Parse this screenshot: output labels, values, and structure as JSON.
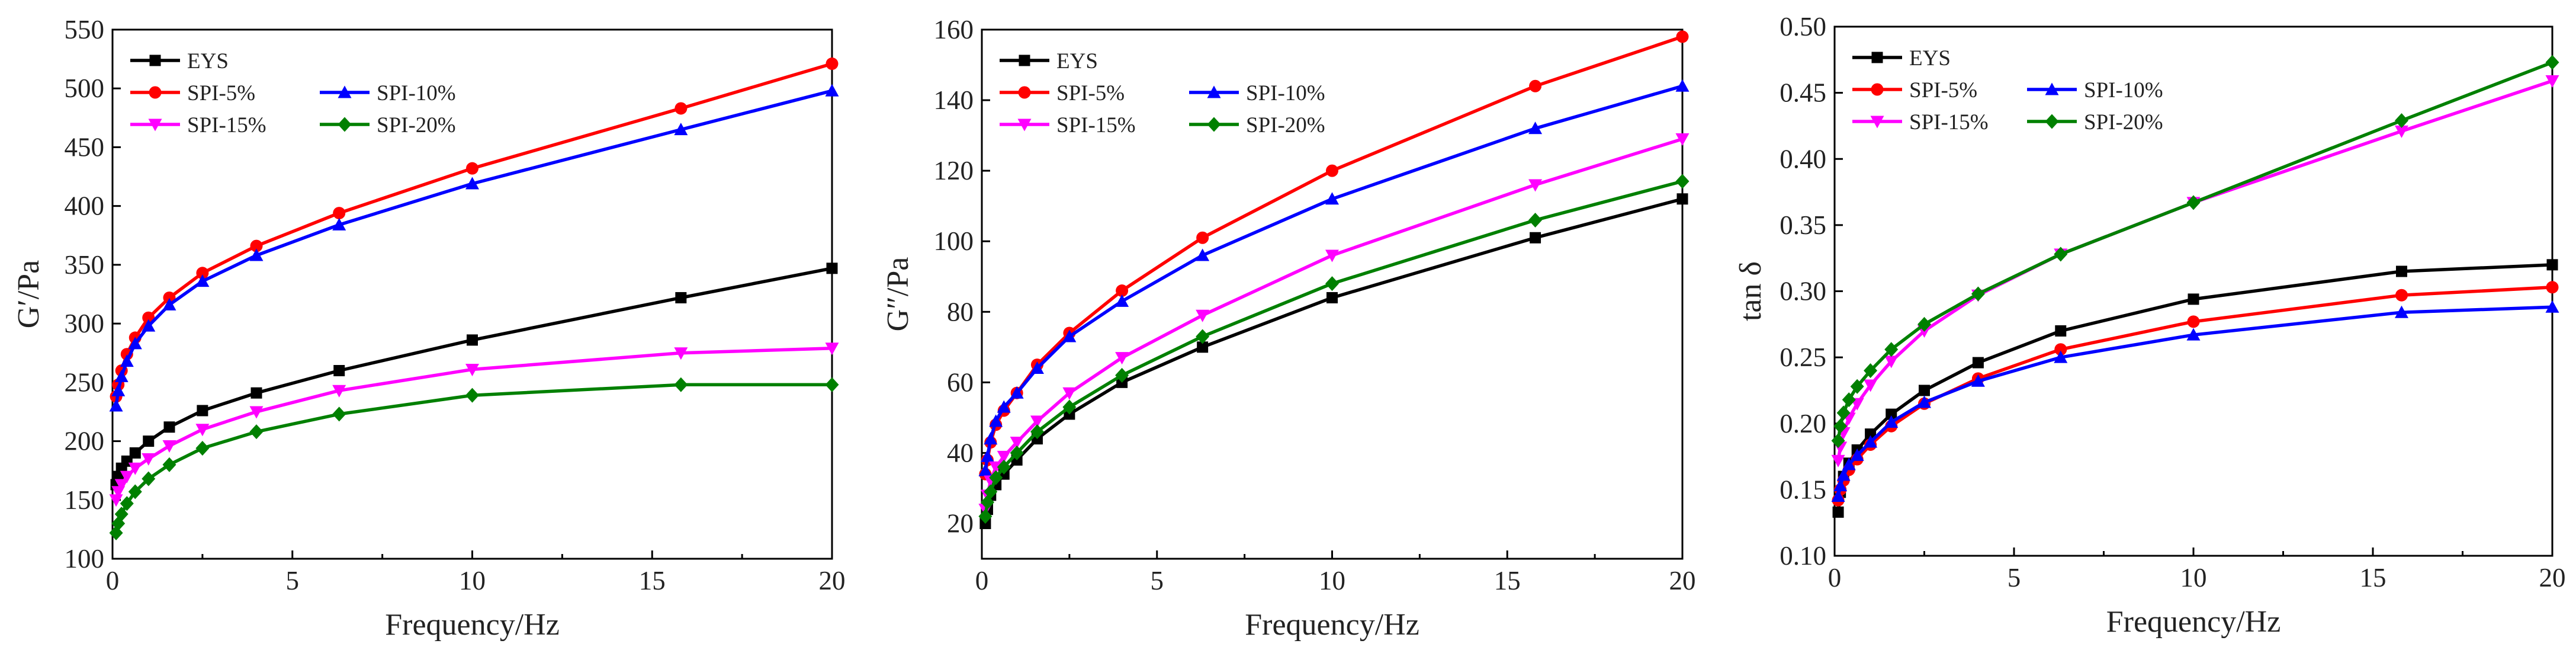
{
  "chart_data": [
    {
      "type": "line",
      "panel": "G-prime",
      "title": "",
      "xlabel": "Frequency/Hz",
      "ylabel": "G′/Pa",
      "xlim": [
        0,
        20
      ],
      "ylim": [
        100,
        550
      ],
      "xticks": [
        0,
        5,
        10,
        15,
        20
      ],
      "yticks": [
        100,
        150,
        200,
        250,
        300,
        350,
        400,
        450,
        500,
        550
      ],
      "grid": false,
      "legend_position": "top-left",
      "x": [
        0.1,
        0.16,
        0.25,
        0.4,
        0.63,
        1.0,
        1.58,
        2.5,
        4.0,
        6.3,
        10.0,
        15.8,
        20.0
      ],
      "series": [
        {
          "name": "EYS",
          "color": "#000000",
          "marker": "square",
          "values": [
            163,
            170,
            177,
            183,
            190,
            200,
            212,
            226,
            241,
            260,
            286,
            322,
            347
          ]
        },
        {
          "name": "SPI-5%",
          "color": "#ff0000",
          "marker": "circle",
          "values": [
            238,
            248,
            260,
            274,
            288,
            305,
            322,
            343,
            366,
            394,
            432,
            483,
            521
          ]
        },
        {
          "name": "SPI-10%",
          "color": "#0000ff",
          "marker": "triangle-up",
          "values": [
            230,
            243,
            255,
            268,
            283,
            298,
            316,
            336,
            358,
            384,
            419,
            465,
            498
          ]
        },
        {
          "name": "SPI-15%",
          "color": "#ff00ff",
          "marker": "triangle-down",
          "values": [
            150,
            157,
            163,
            170,
            177,
            185,
            196,
            210,
            225,
            243,
            261,
            275,
            279
          ]
        },
        {
          "name": "SPI-20%",
          "color": "#008000",
          "marker": "diamond",
          "values": [
            122,
            130,
            138,
            147,
            157,
            168,
            180,
            194,
            208,
            223,
            239,
            248,
            248
          ]
        }
      ]
    },
    {
      "type": "line",
      "panel": "G-double-prime",
      "title": "",
      "xlabel": "Frequency/Hz",
      "ylabel": "G″/Pa",
      "xlim": [
        0,
        20
      ],
      "ylim": [
        10,
        160
      ],
      "xticks": [
        0,
        5,
        10,
        15,
        20
      ],
      "yticks": [
        20,
        40,
        60,
        80,
        100,
        120,
        140,
        160
      ],
      "grid": false,
      "legend_position": "top-left",
      "x": [
        0.1,
        0.16,
        0.25,
        0.4,
        0.63,
        1.0,
        1.58,
        2.5,
        4.0,
        6.3,
        10.0,
        15.8,
        20.0
      ],
      "series": [
        {
          "name": "EYS",
          "color": "#000000",
          "marker": "square",
          "values": [
            20,
            24,
            28,
            31,
            34,
            38,
            44,
            51,
            60,
            70,
            84,
            101,
            112
          ]
        },
        {
          "name": "SPI-5%",
          "color": "#ff0000",
          "marker": "circle",
          "values": [
            34,
            38,
            43,
            48,
            52,
            57,
            65,
            74,
            86,
            101,
            120,
            144,
            158
          ]
        },
        {
          "name": "SPI-10%",
          "color": "#0000ff",
          "marker": "triangle-up",
          "values": [
            35,
            39,
            44,
            49,
            53,
            57,
            64,
            73,
            83,
            96,
            112,
            132,
            144
          ]
        },
        {
          "name": "SPI-15%",
          "color": "#ff00ff",
          "marker": "triangle-down",
          "values": [
            24,
            28,
            32,
            36,
            39,
            43,
            49,
            57,
            67,
            79,
            96,
            116,
            129
          ]
        },
        {
          "name": "SPI-20%",
          "color": "#008000",
          "marker": "diamond",
          "values": [
            22,
            26,
            29,
            33,
            36,
            40,
            46,
            53,
            62,
            73,
            88,
            106,
            117
          ]
        }
      ]
    },
    {
      "type": "line",
      "panel": "tan-delta",
      "title": "",
      "xlabel": "Frequency/Hz",
      "ylabel": "tan δ",
      "xlim": [
        0,
        20
      ],
      "ylim": [
        0.1,
        0.5
      ],
      "xticks": [
        0,
        5,
        10,
        15,
        20
      ],
      "yticks": [
        0.1,
        0.15,
        0.2,
        0.25,
        0.3,
        0.35,
        0.4,
        0.45,
        0.5
      ],
      "ytick_labels": [
        "0.10",
        "0.15",
        "0.20",
        "0.25",
        "0.30",
        "0.35",
        "0.40",
        "0.45",
        "0.50"
      ],
      "grid": false,
      "legend_position": "top-left",
      "x": [
        0.1,
        0.16,
        0.25,
        0.4,
        0.63,
        1.0,
        1.58,
        2.5,
        4.0,
        6.3,
        10.0,
        15.8,
        20.0
      ],
      "series": [
        {
          "name": "EYS",
          "color": "#000000",
          "marker": "square",
          "values": [
            0.133,
            0.148,
            0.16,
            0.17,
            0.18,
            0.192,
            0.207,
            0.225,
            0.246,
            0.27,
            0.294,
            0.315,
            0.32
          ]
        },
        {
          "name": "SPI-5%",
          "color": "#ff0000",
          "marker": "circle",
          "values": [
            0.142,
            0.15,
            0.157,
            0.165,
            0.173,
            0.184,
            0.198,
            0.215,
            0.234,
            0.256,
            0.277,
            0.297,
            0.303
          ]
        },
        {
          "name": "SPI-10%",
          "color": "#0000ff",
          "marker": "triangle-up",
          "values": [
            0.145,
            0.153,
            0.161,
            0.169,
            0.176,
            0.186,
            0.201,
            0.216,
            0.232,
            0.25,
            0.267,
            0.284,
            0.288
          ]
        },
        {
          "name": "SPI-15%",
          "color": "#ff00ff",
          "marker": "triangle-down",
          "values": [
            0.172,
            0.182,
            0.193,
            0.204,
            0.215,
            0.229,
            0.247,
            0.27,
            0.297,
            0.328,
            0.367,
            0.421,
            0.459
          ]
        },
        {
          "name": "SPI-20%",
          "color": "#008000",
          "marker": "diamond",
          "values": [
            0.187,
            0.198,
            0.208,
            0.218,
            0.228,
            0.24,
            0.256,
            0.275,
            0.298,
            0.328,
            0.367,
            0.429,
            0.473
          ]
        }
      ]
    }
  ]
}
